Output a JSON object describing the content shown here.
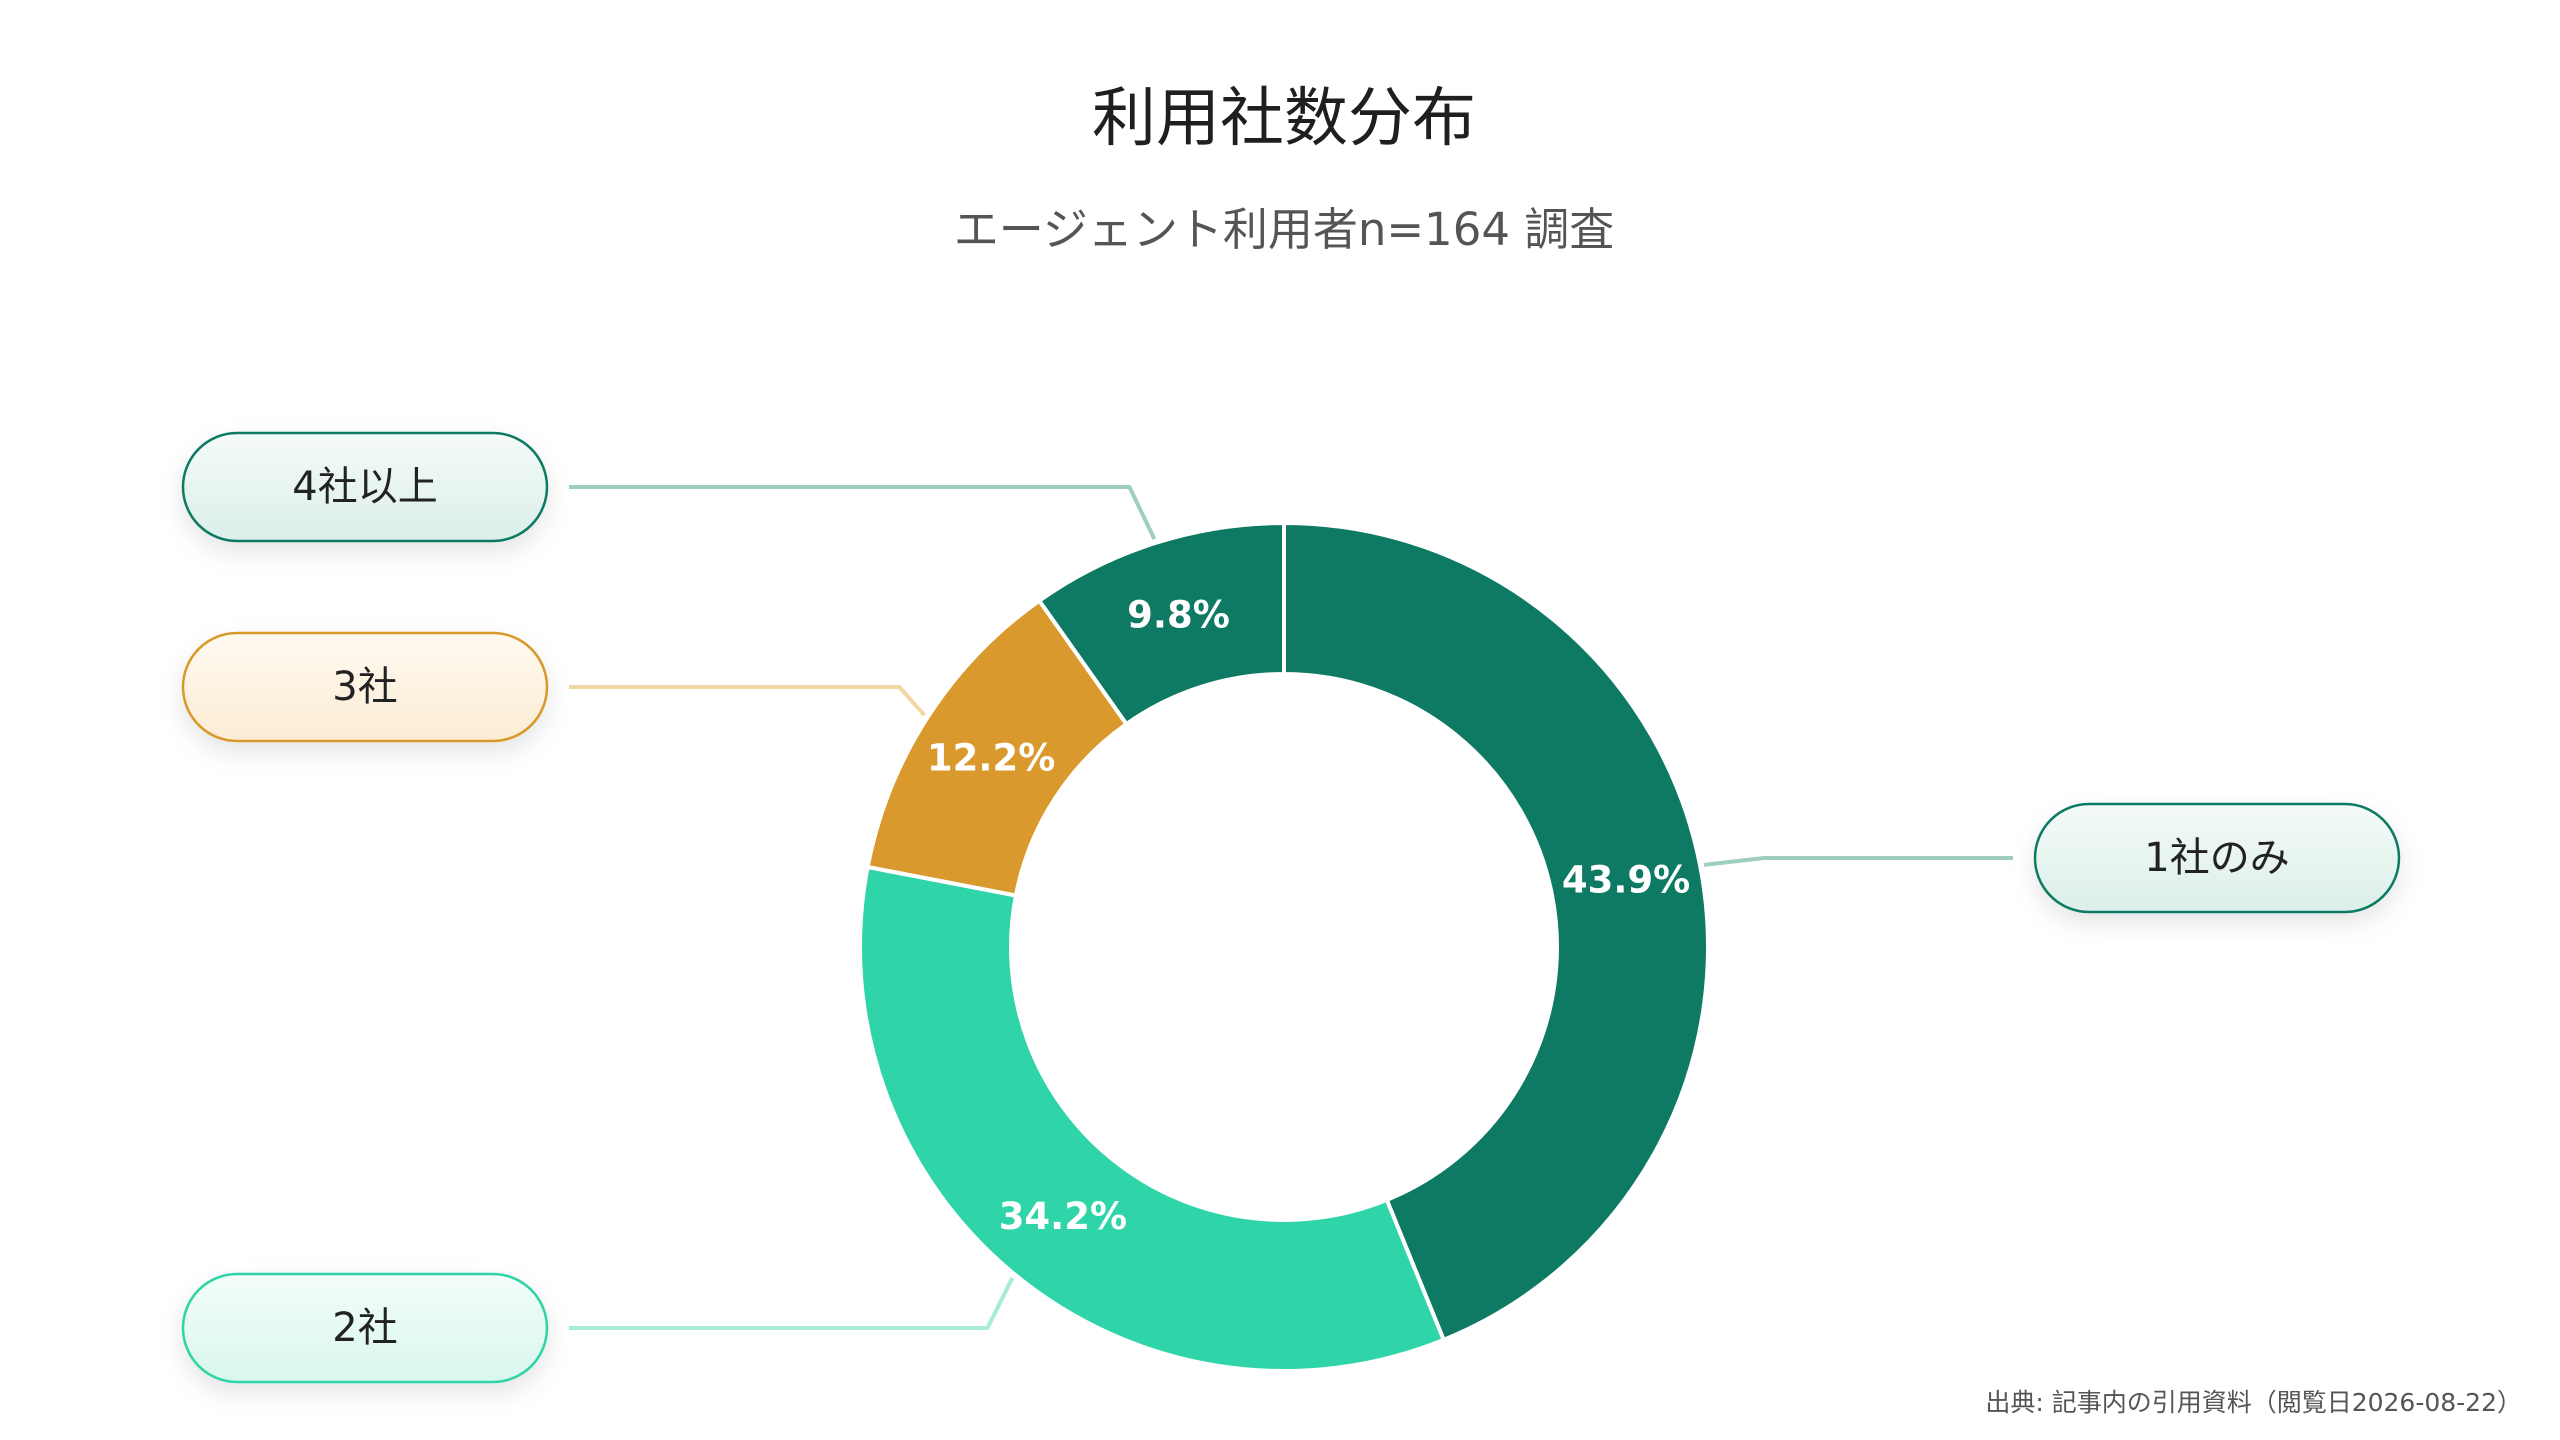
{
  "chart_data": {
    "type": "pie",
    "variant": "donut",
    "title": "利用社数分布",
    "subtitle": "エージェント利用者n=164 調査",
    "categories": [
      "1社のみ",
      "2社",
      "3社",
      "4社以上"
    ],
    "values": [
      43.9,
      34.2,
      12.2,
      9.8
    ],
    "value_labels": [
      "43.9%",
      "34.2%",
      "12.2%",
      "9.8%"
    ],
    "colors": [
      "#0f7a64",
      "#2fd4a8",
      "#d9992c",
      "#0f7a64"
    ],
    "callout_colors": [
      "#0f7a64",
      "#2fd4a8",
      "#d9992c",
      "#0f7a64"
    ],
    "start_angle": "top",
    "direction": "clockwise",
    "legend": "callouts"
  },
  "source": "出典: 記事内の引用資料（閲覧日2026-08-22）"
}
